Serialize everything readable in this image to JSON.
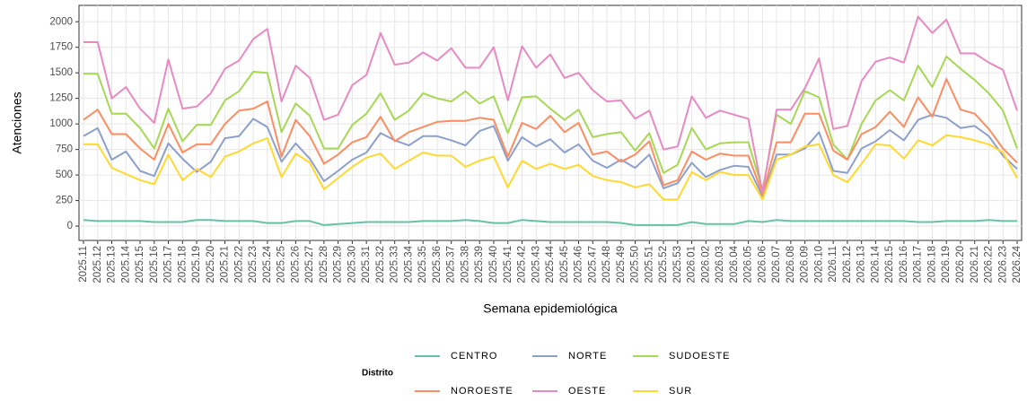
{
  "chart_data": {
    "type": "line",
    "x_label": "Semana epidemiológica",
    "y_label": "Atenciones",
    "legend_title": "Distrito",
    "categories": [
      "2025.11",
      "2025.12",
      "2025.13",
      "2025.14",
      "2025.15",
      "2025.16",
      "2025.17",
      "2025.18",
      "2025.19",
      "2025.20",
      "2025.21",
      "2025.22",
      "2025.23",
      "2025.24",
      "2025.25",
      "2025.26",
      "2025.27",
      "2025.28",
      "2025.29",
      "2025.30",
      "2025.31",
      "2025.32",
      "2025.33",
      "2025.34",
      "2025.35",
      "2025.36",
      "2025.37",
      "2025.38",
      "2025.39",
      "2025.40",
      "2025.41",
      "2025.42",
      "2025.43",
      "2025.44",
      "2025.45",
      "2025.46",
      "2025.47",
      "2025.48",
      "2025.49",
      "2025.50",
      "2025.51",
      "2025.52",
      "2025.53",
      "2026.01",
      "2026.02",
      "2026.03",
      "2026.04",
      "2026.05",
      "2026.06",
      "2026.07",
      "2026.08",
      "2026.09",
      "2026.10",
      "2026.11",
      "2026.12",
      "2026.13",
      "2026.14",
      "2026.15",
      "2026.16",
      "2026.17",
      "2026.18",
      "2026.19",
      "2026.20",
      "2026.21",
      "2026.22",
      "2026.23",
      "2026.24"
    ],
    "series": [
      {
        "name": "CENTRO",
        "color": "#66c2a5",
        "values": [
          60,
          50,
          50,
          50,
          50,
          40,
          40,
          40,
          60,
          60,
          50,
          50,
          50,
          30,
          30,
          50,
          50,
          10,
          20,
          30,
          40,
          40,
          40,
          40,
          50,
          50,
          50,
          60,
          50,
          30,
          30,
          60,
          50,
          40,
          40,
          40,
          40,
          40,
          30,
          10,
          10,
          10,
          10,
          40,
          20,
          20,
          20,
          50,
          40,
          60,
          50,
          50,
          50,
          50,
          50,
          50,
          50,
          50,
          50,
          40,
          40,
          50,
          50,
          50,
          60,
          50,
          50
        ]
      },
      {
        "name": "NORTE",
        "color": "#8da0cb",
        "values": [
          880,
          960,
          650,
          730,
          540,
          490,
          810,
          660,
          530,
          630,
          860,
          880,
          1050,
          970,
          630,
          810,
          660,
          440,
          540,
          650,
          720,
          910,
          840,
          790,
          880,
          880,
          840,
          790,
          930,
          980,
          640,
          870,
          780,
          850,
          720,
          800,
          640,
          570,
          650,
          570,
          700,
          370,
          420,
          620,
          480,
          550,
          590,
          580,
          290,
          700,
          700,
          760,
          920,
          540,
          520,
          760,
          830,
          940,
          840,
          1040,
          1090,
          1060,
          960,
          980,
          880,
          690,
          560
        ]
      },
      {
        "name": "SUDOESTE",
        "color": "#a6d854",
        "values": [
          1490,
          1490,
          1100,
          1100,
          960,
          760,
          1150,
          830,
          990,
          990,
          1230,
          1320,
          1510,
          1500,
          920,
          1200,
          1080,
          760,
          760,
          990,
          1100,
          1300,
          1040,
          1130,
          1300,
          1250,
          1220,
          1320,
          1200,
          1270,
          910,
          1260,
          1270,
          1150,
          1040,
          1140,
          870,
          900,
          920,
          740,
          910,
          520,
          600,
          960,
          750,
          810,
          820,
          820,
          350,
          1090,
          1000,
          1320,
          1260,
          800,
          650,
          1000,
          1230,
          1330,
          1230,
          1570,
          1360,
          1660,
          1540,
          1430,
          1300,
          1130,
          760
        ]
      },
      {
        "name": "NOROESTE",
        "color": "#fc8d62",
        "values": [
          1040,
          1140,
          900,
          900,
          760,
          650,
          1000,
          720,
          800,
          800,
          1000,
          1130,
          1150,
          1220,
          680,
          1040,
          880,
          610,
          700,
          820,
          870,
          1070,
          830,
          920,
          970,
          1020,
          1030,
          1030,
          1060,
          1040,
          680,
          1010,
          950,
          1080,
          920,
          1010,
          700,
          730,
          630,
          700,
          830,
          400,
          450,
          730,
          650,
          710,
          690,
          690,
          310,
          820,
          820,
          1100,
          1100,
          740,
          650,
          900,
          970,
          1120,
          970,
          1260,
          1070,
          1440,
          1140,
          1100,
          950,
          760,
          620
        ]
      },
      {
        "name": "OESTE",
        "color": "#e78ac3",
        "values": [
          1800,
          1800,
          1250,
          1360,
          1150,
          1010,
          1630,
          1150,
          1170,
          1300,
          1540,
          1620,
          1830,
          1930,
          1220,
          1570,
          1450,
          1040,
          1090,
          1380,
          1480,
          1890,
          1580,
          1600,
          1700,
          1620,
          1740,
          1550,
          1550,
          1750,
          1230,
          1760,
          1550,
          1680,
          1450,
          1500,
          1330,
          1220,
          1230,
          1050,
          1130,
          750,
          780,
          1270,
          1060,
          1130,
          1090,
          1050,
          330,
          1140,
          1140,
          1350,
          1640,
          950,
          980,
          1420,
          1610,
          1650,
          1600,
          2050,
          1890,
          2020,
          1690,
          1690,
          1600,
          1530,
          1130
        ]
      },
      {
        "name": "SUR",
        "color": "#ffd92f",
        "values": [
          800,
          800,
          570,
          510,
          450,
          410,
          700,
          450,
          560,
          480,
          680,
          730,
          810,
          860,
          480,
          710,
          620,
          360,
          470,
          580,
          670,
          710,
          560,
          640,
          720,
          690,
          690,
          580,
          640,
          680,
          380,
          640,
          560,
          610,
          560,
          600,
          490,
          450,
          430,
          380,
          410,
          260,
          260,
          530,
          450,
          530,
          500,
          500,
          260,
          650,
          700,
          780,
          800,
          500,
          430,
          610,
          800,
          790,
          660,
          840,
          790,
          890,
          870,
          840,
          800,
          720,
          470
        ]
      }
    ],
    "ylim": [
      -140,
      2160
    ],
    "yticks": [
      0,
      250,
      500,
      750,
      1000,
      1250,
      1500,
      1750,
      2000
    ],
    "grid": true
  }
}
